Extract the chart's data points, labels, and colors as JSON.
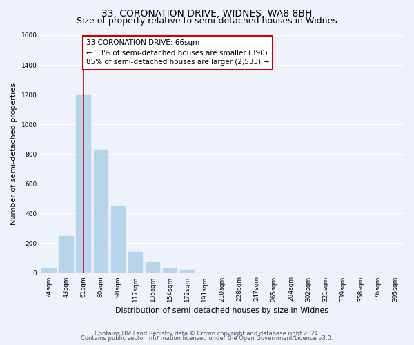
{
  "title": "33, CORONATION DRIVE, WIDNES, WA8 8BH",
  "subtitle": "Size of property relative to semi-detached houses in Widnes",
  "xlabel": "Distribution of semi-detached houses by size in Widnes",
  "ylabel": "Number of semi-detached properties",
  "bin_labels": [
    "24sqm",
    "43sqm",
    "61sqm",
    "80sqm",
    "98sqm",
    "117sqm",
    "135sqm",
    "154sqm",
    "172sqm",
    "191sqm",
    "210sqm",
    "228sqm",
    "247sqm",
    "265sqm",
    "284sqm",
    "302sqm",
    "321sqm",
    "339sqm",
    "358sqm",
    "376sqm",
    "395sqm"
  ],
  "bar_values": [
    30,
    250,
    1200,
    830,
    450,
    140,
    70,
    30,
    20,
    0,
    0,
    0,
    0,
    0,
    0,
    0,
    0,
    0,
    0,
    0,
    0
  ],
  "bar_color": "#b8d4ea",
  "bar_edge_color": "#b8d4ea",
  "property_line_x": 2.0,
  "annotation_title": "33 CORONATION DRIVE: 66sqm",
  "annotation_line1": "← 13% of semi-detached houses are smaller (390)",
  "annotation_line2": "85% of semi-detached houses are larger (2,533) →",
  "annotation_box_color": "#ffffff",
  "annotation_box_edge": "#cc0000",
  "property_line_color": "#cc0000",
  "ylim": [
    0,
    1600
  ],
  "yticks": [
    0,
    200,
    400,
    600,
    800,
    1000,
    1200,
    1400,
    1600
  ],
  "footer1": "Contains HM Land Registry data © Crown copyright and database right 2024.",
  "footer2": "Contains public sector information licensed under the Open Government Licence v3.0.",
  "bg_color": "#eef2fb",
  "plot_bg_color": "#eef2fb",
  "grid_color": "#ffffff",
  "title_fontsize": 10,
  "subtitle_fontsize": 9,
  "axis_label_fontsize": 8,
  "tick_fontsize": 6.5,
  "annotation_fontsize": 7.5,
  "footer_fontsize": 6
}
